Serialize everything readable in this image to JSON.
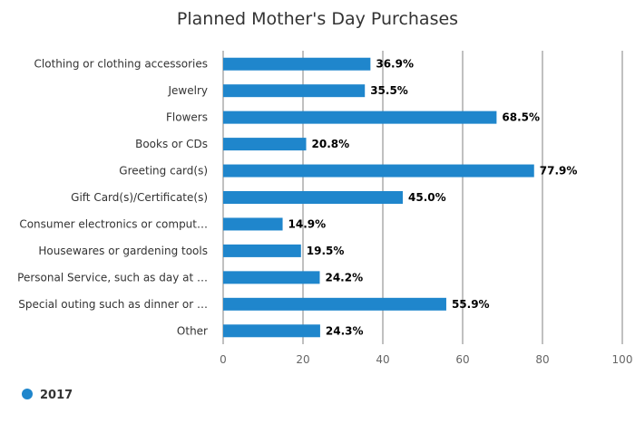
{
  "chart_data": {
    "type": "bar",
    "orientation": "horizontal",
    "title": "Planned Mother's Day Purchases",
    "categories": [
      "Clothing or clothing accessories",
      "Jewelry",
      "Flowers",
      "Books or CDs",
      "Greeting card(s)",
      "Gift Card(s)/Certificate(s)",
      "Consumer electronics or comput…",
      "Housewares or gardening tools",
      "Personal Service, such as day at …",
      "Special outing such as dinner or …",
      "Other"
    ],
    "series": [
      {
        "name": "2017",
        "color": "#1f86cc",
        "values": [
          36.9,
          35.5,
          68.5,
          20.8,
          77.9,
          45.0,
          14.9,
          19.5,
          24.2,
          55.9,
          24.3
        ],
        "labels": [
          "36.9%",
          "35.5%",
          "68.5%",
          "20.8%",
          "77.9%",
          "45.0%",
          "14.9%",
          "19.5%",
          "24.2%",
          "55.9%",
          "24.3%"
        ]
      }
    ],
    "xlim": [
      0,
      100
    ],
    "xticks": [
      0,
      20,
      40,
      60,
      80,
      100
    ],
    "grid": true,
    "legend_position": "bottom-left"
  }
}
